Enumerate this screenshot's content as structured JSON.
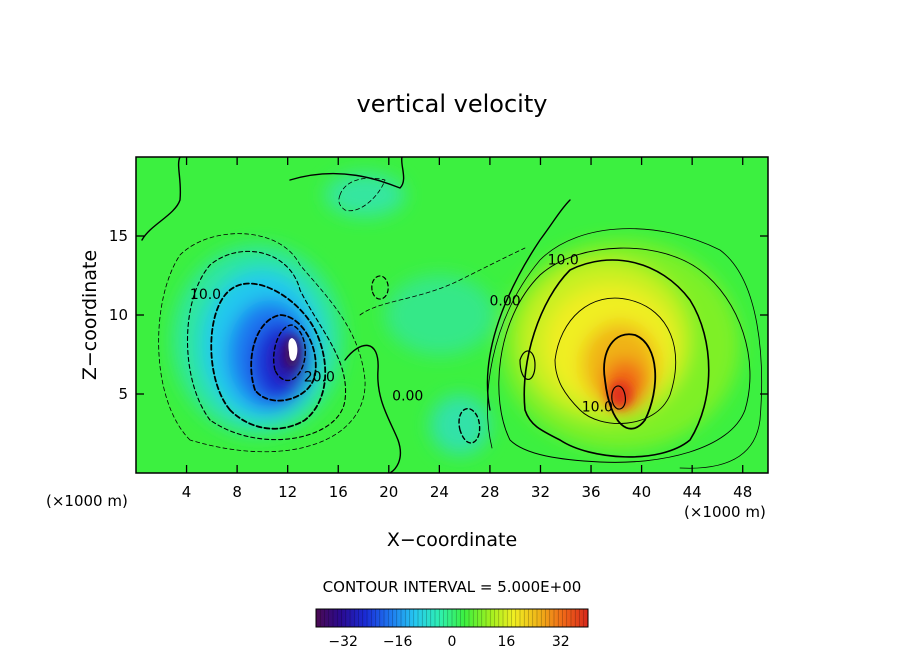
{
  "chart_data": {
    "type": "heatmap",
    "title": "vertical velocity",
    "xlabel": "X−coordinate",
    "ylabel": "Z−coordinate",
    "x_unit_left": "(×1000 m)",
    "x_unit_right": "(×1000 m)",
    "xlim": [
      0,
      50
    ],
    "ylim": [
      0,
      20
    ],
    "x_ticks": [
      4,
      8,
      12,
      16,
      20,
      24,
      28,
      32,
      36,
      40,
      44,
      48
    ],
    "y_ticks": [
      5,
      10,
      15
    ],
    "contour_interval_label": "CONTOUR INTERVAL = 5.000E+00",
    "contour_labels": [
      {
        "text": "10.0",
        "x": 5.5,
        "y": 11.0
      },
      {
        "text": "20.0",
        "x": 14.5,
        "y": 5.8
      },
      {
        "text": "0.00",
        "x": 21.5,
        "y": 4.6
      },
      {
        "text": "0.00",
        "x": 29.2,
        "y": 10.6
      },
      {
        "text": "10.0",
        "x": 33.8,
        "y": 13.2
      },
      {
        "text": "10.0",
        "x": 36.5,
        "y": 3.9
      }
    ],
    "features": [
      {
        "kind": "downdraft",
        "x": 12.5,
        "y": 7.5,
        "value": -40
      },
      {
        "kind": "updraft",
        "x": 38.5,
        "y": 6.5,
        "value": 33
      }
    ],
    "colorbar": {
      "min": -40,
      "max": 40,
      "tick_values": [
        -32,
        -16,
        0,
        16,
        32
      ],
      "tick_labels": [
        "−32",
        "−16",
        "0",
        "16",
        "32"
      ],
      "colors": [
        "#4b0a52",
        "#2a0a90",
        "#1a2cd6",
        "#1e78f0",
        "#26c8f0",
        "#2ef0b0",
        "#3cf040",
        "#9cf020",
        "#f0ee22",
        "#f0b418",
        "#f06818",
        "#d8281c"
      ]
    }
  }
}
